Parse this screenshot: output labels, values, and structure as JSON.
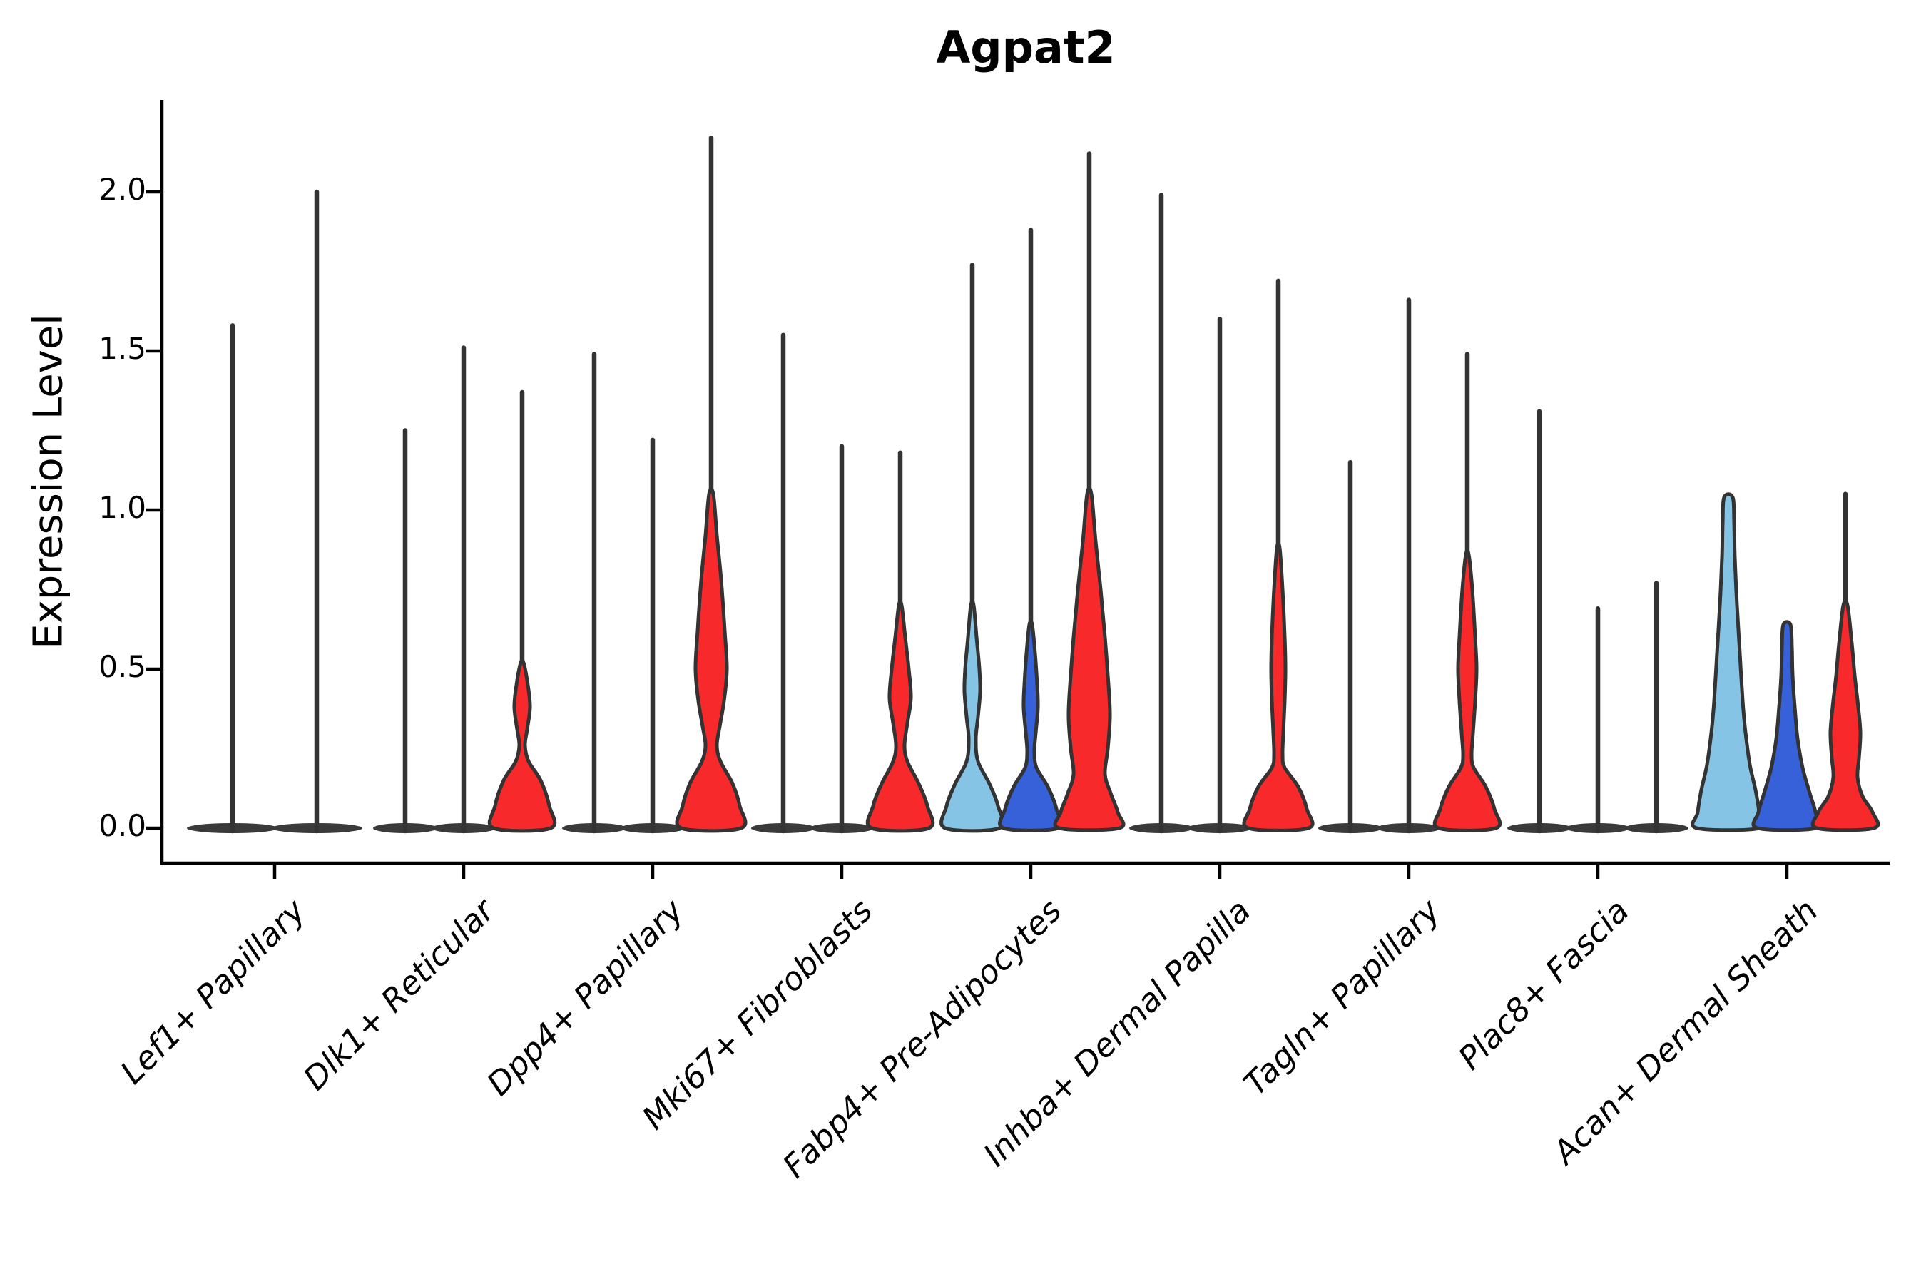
{
  "figure": {
    "title": "Agpat2",
    "y_axis_label": "Expression Level"
  },
  "chart_data": {
    "type": "violin",
    "title": "Agpat2",
    "xlabel": "",
    "ylabel": "Expression Level",
    "y_ticks": [
      "0.0",
      "0.5",
      "1.0",
      "1.5",
      "2.0"
    ],
    "y_tick_values": [
      0,
      0.5,
      1.0,
      1.5,
      2.0
    ],
    "ylim": [
      -0.11,
      2.29
    ],
    "grid": false,
    "legend": false,
    "categories": [
      "Lef1+ Papillary",
      "Dlk1+ Reticular",
      "Dpp4+ Papillary",
      "Mki67+ Fibroblasts",
      "Fabp4+ Pre-Adipocytes",
      "Inhba+ Dermal Papilla",
      "Tagln+ Papillary",
      "Plac8+ Fascia",
      "Acan+ Dermal Sheath"
    ],
    "colors": {
      "lightblue": "#85C4E4",
      "blue": "#3661D9",
      "red": "#F8292B"
    },
    "outline_color": "#333333",
    "axis_color": "#000000",
    "groups": [
      {
        "label": "Lef1+ Papillary",
        "violins": [
          {
            "color": "plain",
            "max": 1.58,
            "profile": null
          },
          {
            "color": "plain",
            "max": 2.0,
            "profile": null
          }
        ]
      },
      {
        "label": "Dlk1+ Reticular",
        "violins": [
          {
            "color": "plain",
            "max": 1.25,
            "profile": null
          },
          {
            "color": "plain",
            "max": 1.51,
            "profile": null
          },
          {
            "color": "red",
            "max": 1.37,
            "profile": [
              [
                0.52,
                2
              ],
              [
                0.45,
                8
              ],
              [
                0.38,
                11
              ],
              [
                0.31,
                7
              ],
              [
                0.26,
                4
              ],
              [
                0.21,
                9
              ],
              [
                0.15,
                26
              ],
              [
                0.07,
                38
              ],
              [
                0,
                40
              ]
            ]
          }
        ]
      },
      {
        "label": "Dpp4+ Papillary",
        "violins": [
          {
            "color": "plain",
            "max": 1.49,
            "profile": null
          },
          {
            "color": "plain",
            "max": 1.22,
            "profile": null
          },
          {
            "color": "red",
            "max": 2.17,
            "profile": [
              [
                1.05,
                3
              ],
              [
                0.92,
                8
              ],
              [
                0.78,
                14
              ],
              [
                0.62,
                19
              ],
              [
                0.5,
                22
              ],
              [
                0.4,
                18
              ],
              [
                0.32,
                12
              ],
              [
                0.26,
                8
              ],
              [
                0.21,
                13
              ],
              [
                0.14,
                30
              ],
              [
                0.07,
                40
              ],
              [
                0,
                42
              ]
            ]
          }
        ]
      },
      {
        "label": "Mki67+ Fibroblasts",
        "violins": [
          {
            "color": "plain",
            "max": 1.55,
            "profile": null
          },
          {
            "color": "plain",
            "max": 1.2,
            "profile": null
          },
          {
            "color": "red",
            "max": 1.18,
            "profile": [
              [
                0.7,
                2
              ],
              [
                0.6,
                7
              ],
              [
                0.5,
                12
              ],
              [
                0.41,
                15
              ],
              [
                0.33,
                10
              ],
              [
                0.26,
                6
              ],
              [
                0.21,
                10
              ],
              [
                0.14,
                26
              ],
              [
                0.07,
                38
              ],
              [
                0,
                40
              ]
            ]
          }
        ]
      },
      {
        "label": "Fabp4+ Pre-Adipocytes",
        "violins": [
          {
            "color": "lightblue",
            "max": 1.77,
            "profile": [
              [
                0.7,
                2
              ],
              [
                0.6,
                6
              ],
              [
                0.5,
                10
              ],
              [
                0.43,
                11
              ],
              [
                0.35,
                8
              ],
              [
                0.28,
                5
              ],
              [
                0.21,
                8
              ],
              [
                0.14,
                24
              ],
              [
                0.07,
                36
              ],
              [
                0,
                38
              ]
            ]
          },
          {
            "color": "blue",
            "max": 1.88,
            "profile": [
              [
                0.64,
                2
              ],
              [
                0.55,
                6
              ],
              [
                0.45,
                9
              ],
              [
                0.38,
                10
              ],
              [
                0.3,
                7
              ],
              [
                0.24,
                5
              ],
              [
                0.19,
                8
              ],
              [
                0.13,
                24
              ],
              [
                0.06,
                36
              ],
              [
                0,
                38
              ]
            ]
          },
          {
            "color": "red",
            "max": 2.12,
            "profile": [
              [
                1.05,
                3
              ],
              [
                0.9,
                9
              ],
              [
                0.75,
                16
              ],
              [
                0.6,
                22
              ],
              [
                0.45,
                27
              ],
              [
                0.35,
                29
              ],
              [
                0.25,
                26
              ],
              [
                0.17,
                22
              ],
              [
                0.11,
                30
              ],
              [
                0.05,
                40
              ],
              [
                0,
                42
              ]
            ]
          }
        ]
      },
      {
        "label": "Inhba+ Dermal Papilla",
        "violins": [
          {
            "color": "plain",
            "max": 1.99,
            "profile": null
          },
          {
            "color": "plain",
            "max": 1.6,
            "profile": null
          },
          {
            "color": "red",
            "max": 1.72,
            "profile": [
              [
                0.88,
                2
              ],
              [
                0.75,
                6
              ],
              [
                0.6,
                9
              ],
              [
                0.5,
                10
              ],
              [
                0.4,
                9
              ],
              [
                0.3,
                7
              ],
              [
                0.23,
                6
              ],
              [
                0.19,
                9
              ],
              [
                0.13,
                28
              ],
              [
                0.06,
                40
              ],
              [
                0,
                42
              ]
            ]
          }
        ]
      },
      {
        "label": "Tagln+ Papillary",
        "violins": [
          {
            "color": "plain",
            "max": 1.15,
            "profile": null
          },
          {
            "color": "plain",
            "max": 1.66,
            "profile": null
          },
          {
            "color": "red",
            "max": 1.49,
            "profile": [
              [
                0.86,
                2
              ],
              [
                0.75,
                7
              ],
              [
                0.6,
                11
              ],
              [
                0.5,
                13
              ],
              [
                0.4,
                11
              ],
              [
                0.3,
                8
              ],
              [
                0.23,
                6
              ],
              [
                0.19,
                9
              ],
              [
                0.13,
                26
              ],
              [
                0.06,
                38
              ],
              [
                0,
                40
              ]
            ]
          }
        ]
      },
      {
        "label": "Plac8+ Fascia",
        "violins": [
          {
            "color": "plain",
            "max": 1.31,
            "profile": null
          },
          {
            "color": "plain",
            "max": 0.69,
            "profile": null
          },
          {
            "color": "plain",
            "max": 0.77,
            "profile": null
          }
        ]
      },
      {
        "label": "Acan+ Dermal Sheath",
        "violins": [
          {
            "color": "lightblue",
            "max": 1.05,
            "profile": [
              [
                1.04,
                6
              ],
              [
                0.96,
                8
              ],
              [
                0.85,
                9
              ],
              [
                0.7,
                12
              ],
              [
                0.55,
                16
              ],
              [
                0.4,
                20
              ],
              [
                0.3,
                24
              ],
              [
                0.2,
                30
              ],
              [
                0.12,
                38
              ],
              [
                0.05,
                43
              ],
              [
                0,
                44
              ]
            ]
          },
          {
            "color": "blue",
            "max": 0.65,
            "profile": [
              [
                0.64,
                5
              ],
              [
                0.57,
                7
              ],
              [
                0.48,
                8
              ],
              [
                0.38,
                11
              ],
              [
                0.28,
                15
              ],
              [
                0.19,
                22
              ],
              [
                0.11,
                32
              ],
              [
                0.05,
                40
              ],
              [
                0,
                41
              ]
            ]
          },
          {
            "color": "red",
            "max": 1.05,
            "profile": [
              [
                0.7,
                3
              ],
              [
                0.58,
                9
              ],
              [
                0.48,
                13
              ],
              [
                0.38,
                18
              ],
              [
                0.3,
                21
              ],
              [
                0.22,
                19
              ],
              [
                0.16,
                17
              ],
              [
                0.1,
                24
              ],
              [
                0.05,
                38
              ],
              [
                0,
                40
              ]
            ]
          }
        ]
      }
    ]
  }
}
